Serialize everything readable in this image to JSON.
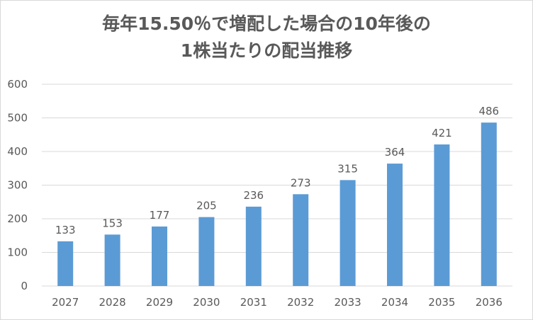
{
  "chart_data": {
    "type": "bar",
    "title_lines": [
      "毎年15.50％で増配した場合の10年後の",
      "1株当たりの配当推移"
    ],
    "categories": [
      "2027",
      "2028",
      "2029",
      "2030",
      "2031",
      "2032",
      "2033",
      "2034",
      "2035",
      "2036"
    ],
    "values": [
      133,
      153,
      177,
      205,
      236,
      273,
      315,
      364,
      421,
      486
    ],
    "data_labels": [
      "133",
      "153",
      "177",
      "205",
      "236",
      "273",
      "315",
      "364",
      "421",
      "486"
    ],
    "ylim": [
      0,
      600
    ],
    "y_ticks": [
      0,
      100,
      200,
      300,
      400,
      500,
      600
    ],
    "y_tick_labels": [
      "0",
      "100",
      "200",
      "300",
      "400",
      "500",
      "600"
    ],
    "grid": true,
    "legend": "none",
    "bar_color": "#5B9BD5",
    "grid_color": "#d9d9d9",
    "text_color": "#595959"
  }
}
